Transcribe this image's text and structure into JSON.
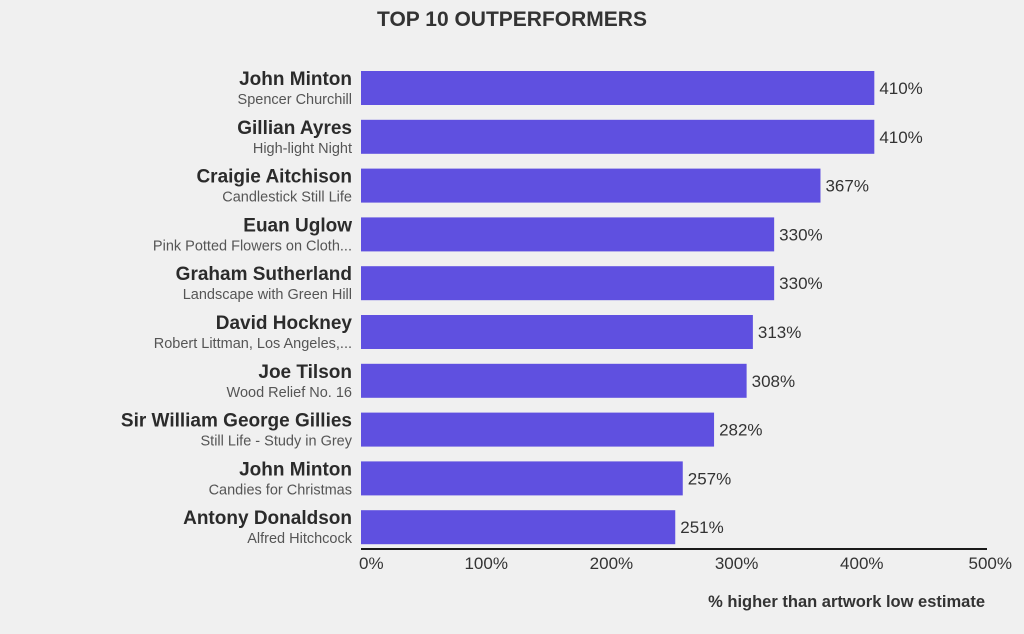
{
  "chart_data": {
    "type": "bar",
    "orientation": "horizontal",
    "title": "TOP 10 OUTPERFORMERS",
    "xlabel": "% higher than artwork low estimate",
    "ylabel": "",
    "xlim": [
      0,
      500
    ],
    "x_ticks": [
      "0%",
      "100%",
      "200%",
      "300%",
      "400%",
      "500%"
    ],
    "bar_color": "#5f50e0",
    "grid": false,
    "categories": [
      {
        "artist": "John Minton",
        "artwork": "Spencer Churchill"
      },
      {
        "artist": "Gillian Ayres",
        "artwork": "High-light Night"
      },
      {
        "artist": "Craigie Aitchison",
        "artwork": "Candlestick Still Life"
      },
      {
        "artist": "Euan Uglow",
        "artwork": "Pink Potted Flowers on Cloth..."
      },
      {
        "artist": "Graham Sutherland",
        "artwork": "Landscape with Green Hill"
      },
      {
        "artist": "David Hockney",
        "artwork": "Robert Littman, Los Angeles,..."
      },
      {
        "artist": "Joe Tilson",
        "artwork": "Wood Relief No. 16"
      },
      {
        "artist": "Sir William George Gillies",
        "artwork": "Still Life - Study in Grey"
      },
      {
        "artist": "John Minton",
        "artwork": "Candies for Christmas"
      },
      {
        "artist": "Antony Donaldson",
        "artwork": "Alfred Hitchcock"
      }
    ],
    "values": [
      410,
      410,
      367,
      330,
      330,
      313,
      308,
      282,
      257,
      251
    ],
    "value_labels": [
      "410%",
      "410%",
      "367%",
      "330%",
      "330%",
      "313%",
      "308%",
      "282%",
      "257%",
      "251%"
    ]
  }
}
